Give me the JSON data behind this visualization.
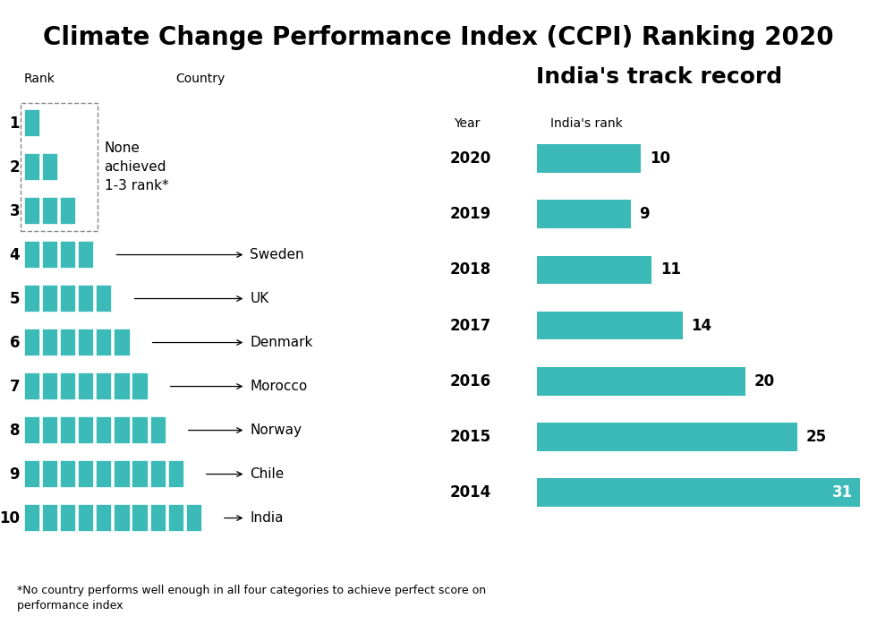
{
  "bg_color": "#ffffff",
  "bar_color": "#3bbab8",
  "title_main": "Climate Change Performance Index (",
  "title_ccpi": "CCPI",
  "title_end": ") Ranking 2020",
  "title_fontsize": 20,
  "title_ccpi_fontsize": 13,
  "left_header_rank": "Rank",
  "left_header_country": "Country",
  "left_ranks": [
    1,
    2,
    3,
    4,
    5,
    6,
    7,
    8,
    9,
    10
  ],
  "left_countries": [
    "",
    "",
    "",
    "Sweden",
    "UK",
    "Denmark",
    "Morocco",
    "Norway",
    "Chile",
    "India"
  ],
  "none_text": "None\nachieved\n1-3 rank*",
  "right_title": "India's track record",
  "right_col1": "Year",
  "right_col2": "India's rank",
  "right_years": [
    2020,
    2019,
    2018,
    2017,
    2016,
    2015,
    2014
  ],
  "right_ranks": [
    10,
    9,
    11,
    14,
    20,
    25,
    31
  ],
  "footnote": "*No country performs well enough in all four categories to achieve perfect score on\nperformance index",
  "divider_color": "#aaaaaa"
}
